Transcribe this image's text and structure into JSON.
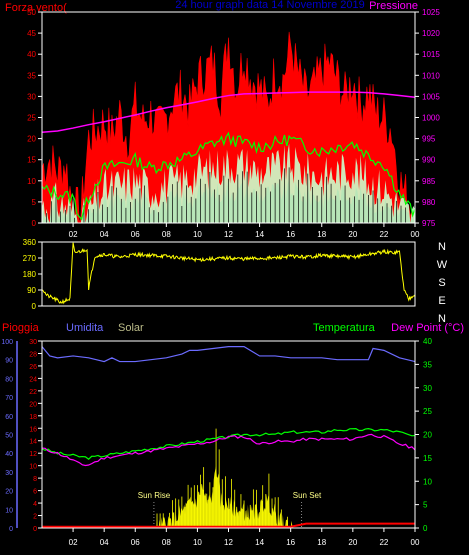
{
  "colors": {
    "background": "#000000",
    "wind": "#ff0000",
    "wind_avg": "#00ff00",
    "wind_min": "#ccffcc",
    "wind_black": "#000000",
    "pressure": "#ff00ff",
    "direction": "#ffff00",
    "humidity": "#6b6bff",
    "temperature": "#00ff00",
    "dewpoint": "#ff00ff",
    "rain": "#ff0000",
    "solar": "#ffff00",
    "axis": "#ffffff",
    "grid": "#ffffff"
  },
  "chart_data": [
    {
      "type": "line",
      "title": "24 hour graph data   14 Novembre 2019",
      "left_label": "Forza vento(",
      "right_label": "Pressione",
      "x_ticks": [
        "02",
        "04",
        "06",
        "08",
        "10",
        "12",
        "14",
        "16",
        "18",
        "20",
        "22",
        "00"
      ],
      "left_ticks": [
        "0",
        "5",
        "10",
        "15",
        "20",
        "25",
        "30",
        "35",
        "40",
        "45",
        "50"
      ],
      "right_ticks": [
        "975",
        "980",
        "985",
        "990",
        "995",
        "1000",
        "1005",
        "1010",
        "1015",
        "1020",
        "1025"
      ],
      "xlim": [
        0,
        24
      ],
      "ylim_left": [
        0,
        50
      ],
      "ylim_right": [
        975,
        1025
      ],
      "series": [
        {
          "name": "Forza vento",
          "axis": "left",
          "style": "gust-fill",
          "x": [
            0,
            0.5,
            1,
            1.5,
            2,
            2.5,
            3,
            3.5,
            4,
            4.5,
            5,
            5.5,
            6,
            6.5,
            7,
            7.5,
            8,
            8.5,
            9,
            9.5,
            10,
            10.5,
            11,
            11.5,
            12,
            12.5,
            13,
            13.5,
            14,
            14.5,
            15,
            15.5,
            16,
            16.5,
            17,
            17.5,
            18,
            18.5,
            19,
            19.5,
            20,
            20.5,
            21,
            21.5,
            22,
            22.5,
            23,
            23.5,
            24
          ],
          "values": [
            13,
            15,
            12,
            14,
            4,
            2,
            20,
            22,
            24,
            21,
            26,
            20,
            28,
            24,
            26,
            22,
            25,
            30,
            31,
            27,
            34,
            36,
            38,
            30,
            44,
            32,
            40,
            34,
            32,
            28,
            36,
            34,
            42,
            35,
            30,
            32,
            36,
            38,
            34,
            30,
            34,
            28,
            31,
            26,
            25,
            22,
            10,
            6,
            3
          ]
        },
        {
          "name": "Media",
          "axis": "left",
          "style": "line",
          "x": [
            0,
            1,
            2,
            2.5,
            3,
            4,
            5,
            6,
            7,
            8,
            9,
            10,
            11,
            12,
            13,
            14,
            15,
            16,
            17,
            18,
            19,
            20,
            21,
            22,
            23,
            24
          ],
          "values": [
            8,
            7,
            6,
            1,
            6,
            13,
            14,
            15,
            13,
            14,
            15,
            17,
            19,
            20,
            19,
            18,
            19,
            20,
            18,
            17,
            18,
            19,
            16,
            14,
            7,
            2
          ]
        },
        {
          "name": "Minimo",
          "axis": "left",
          "style": "fill",
          "x": [
            0,
            1,
            2,
            2.5,
            3,
            4,
            5,
            6,
            7,
            8,
            9,
            10,
            11,
            12,
            13,
            14,
            15,
            16,
            17,
            18,
            19,
            20,
            21,
            22,
            23,
            24
          ],
          "values": [
            4,
            5,
            3,
            0,
            3,
            8,
            9,
            10,
            8,
            9,
            10,
            12,
            13,
            14,
            14,
            12,
            13,
            14,
            12,
            11,
            12,
            13,
            10,
            8,
            4,
            1
          ]
        },
        {
          "name": "Pressione",
          "axis": "right",
          "style": "line",
          "x": [
            0,
            1,
            2,
            3,
            4,
            5,
            6,
            7,
            8,
            9,
            10,
            11,
            12,
            13,
            14,
            15,
            16,
            17,
            18,
            19,
            20,
            21,
            22,
            23,
            24
          ],
          "values": [
            996.5,
            996.8,
            997.5,
            998.3,
            999,
            999.8,
            1000.6,
            1001.5,
            1002.3,
            1003,
            1003.7,
            1004.5,
            1005.2,
            1005.6,
            1005.7,
            1005.8,
            1005.9,
            1006,
            1006,
            1006,
            1006,
            1005.9,
            1005.6,
            1005.2,
            1004.8
          ]
        }
      ]
    },
    {
      "type": "line",
      "left_ticks": [
        "0",
        "90",
        "180",
        "270",
        "360"
      ],
      "right_ticks": [
        "N",
        "W",
        "S",
        "E",
        "N"
      ],
      "ylim": [
        0,
        360
      ],
      "xlim": [
        0,
        24
      ],
      "series": [
        {
          "name": "Direzione",
          "x": [
            0,
            0.3,
            0.8,
            1.2,
            1.5,
            1.8,
            2,
            2.1,
            2.6,
            2.9,
            3,
            3.4,
            4,
            5,
            6,
            7,
            8,
            9,
            10,
            11,
            12,
            13,
            14,
            15,
            16,
            17,
            18,
            19,
            20,
            21,
            22,
            22.5,
            23,
            23.3,
            23.6,
            24
          ],
          "values": [
            100,
            60,
            40,
            20,
            30,
            40,
            350,
            300,
            310,
            320,
            100,
            280,
            290,
            275,
            290,
            285,
            280,
            270,
            260,
            265,
            270,
            265,
            268,
            270,
            280,
            275,
            285,
            280,
            275,
            290,
            305,
            300,
            305,
            90,
            40,
            70
          ]
        }
      ]
    },
    {
      "type": "line",
      "left_label": "Pioggia",
      "humidity_label": "Umidita",
      "solar_label": "Solar",
      "temperature_label": "Temperatura",
      "dewpoint_label": "Dew Point (°C)",
      "annotations": [
        "Sun Rise",
        "Sun Set"
      ],
      "x_ticks": [
        "02",
        "04",
        "06",
        "08",
        "10",
        "12",
        "14",
        "16",
        "18",
        "20",
        "22",
        "00"
      ],
      "humidity_ticks": [
        "0",
        "10",
        "20",
        "30",
        "40",
        "50",
        "60",
        "70",
        "80",
        "90",
        "100"
      ],
      "rain_ticks": [
        "0",
        "2",
        "4",
        "6",
        "8",
        "10",
        "12",
        "14",
        "16",
        "18",
        "20",
        "22",
        "24",
        "26",
        "28",
        "30"
      ],
      "temp_ticks": [
        "0",
        "5",
        "10",
        "15",
        "20",
        "25",
        "30",
        "35",
        "40"
      ],
      "xlim": [
        0,
        24
      ],
      "series": [
        {
          "name": "Umidita",
          "axis": "humidity",
          "ylim": [
            0,
            100
          ],
          "x": [
            0,
            0.5,
            1,
            2,
            3,
            4,
            4.5,
            5,
            6,
            7,
            8,
            9,
            9.5,
            10,
            11,
            12,
            13,
            14,
            15,
            16,
            17,
            18,
            19,
            20,
            21,
            21.3,
            22,
            23,
            24
          ],
          "values": [
            97,
            92,
            91,
            92,
            91,
            89,
            91,
            89,
            89,
            90,
            91,
            93,
            95,
            95,
            96,
            97,
            97,
            92,
            92,
            91,
            91,
            91,
            90,
            90,
            90,
            96,
            95,
            91,
            89
          ]
        },
        {
          "name": "Temperatura",
          "axis": "temp",
          "ylim": [
            0,
            40
          ],
          "x": [
            0,
            1,
            2,
            3,
            4,
            5,
            6,
            7,
            8,
            9,
            10,
            11,
            12,
            13,
            14,
            15,
            16,
            17,
            18,
            19,
            20,
            21,
            22,
            23,
            24
          ],
          "values": [
            17,
            16,
            15.5,
            15,
            15.5,
            16,
            16.5,
            17,
            17.5,
            18,
            18.5,
            19,
            19.5,
            20,
            20,
            20,
            20.5,
            20.5,
            20.5,
            21,
            21,
            21,
            21,
            20.5,
            19.5
          ]
        },
        {
          "name": "Dew Point",
          "axis": "temp",
          "ylim": [
            0,
            40
          ],
          "x": [
            0,
            1,
            2,
            2.5,
            3,
            4,
            5,
            6,
            7,
            8,
            9,
            10,
            11,
            12,
            13,
            14,
            15,
            16,
            17,
            18,
            19,
            20,
            21,
            22,
            23,
            24
          ],
          "values": [
            17,
            16,
            14.5,
            13.5,
            13.5,
            15,
            15.5,
            16,
            16.5,
            17,
            17.5,
            18,
            18.5,
            19.5,
            19.5,
            18,
            18.5,
            18.5,
            19,
            19,
            19,
            19,
            20,
            19.5,
            18,
            17
          ]
        },
        {
          "name": "Pioggia",
          "axis": "rain",
          "ylim": [
            0,
            30
          ],
          "x": [
            0,
            4,
            8,
            12,
            16,
            17,
            20,
            24
          ],
          "values": [
            0.2,
            0.2,
            0.2,
            0.2,
            0.2,
            0.7,
            0.7,
            0.7
          ]
        },
        {
          "name": "Solar",
          "axis": "temp",
          "ylim": [
            0,
            40
          ],
          "x": [
            0,
            7,
            7.5,
            8,
            8.5,
            9,
            9.5,
            10,
            10.3,
            10.6,
            11,
            11.2,
            11.5,
            12,
            12.5,
            13,
            13.5,
            14,
            14.5,
            15,
            15.5,
            16,
            16.5,
            24
          ],
          "values": [
            0,
            0,
            0.3,
            1,
            2,
            3.5,
            5,
            6,
            9,
            5,
            7,
            14,
            6,
            5,
            4,
            3.5,
            3,
            4,
            6,
            3,
            1,
            0.3,
            0,
            0
          ]
        }
      ]
    }
  ]
}
